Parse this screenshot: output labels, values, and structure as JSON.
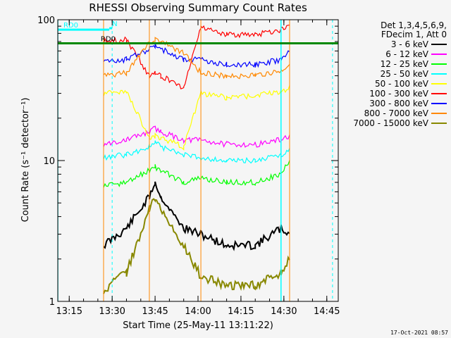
{
  "chart_data": {
    "type": "line",
    "title": "RHESSI Observing Summary Count Rates",
    "xlabel": "Start Time (25-May-11 13:11:22)",
    "ylabel": "Count Rate (s⁻¹ detector⁻¹)",
    "y_scale": "log",
    "ylim": [
      1,
      100
    ],
    "xlim": [
      "13:11",
      "14:49"
    ],
    "x_ticks": [
      "13:15",
      "13:30",
      "13:45",
      "14:00",
      "14:15",
      "14:30",
      "14:45"
    ],
    "y_ticks": [
      "1",
      "10",
      "100"
    ],
    "legend_position": "top-right",
    "legend_title": [
      "Det 1,3,4,5,6,9,",
      "FDecim 1, Att 0"
    ],
    "series": [
      {
        "name": "3 - 6 keV",
        "color": "#000000",
        "x": [
          "13:27",
          "13:35",
          "13:43",
          "13:45",
          "13:47",
          "13:55",
          "14:01",
          "14:10",
          "14:20",
          "14:29",
          "14:32"
        ],
        "y": [
          2.5,
          3.3,
          5.5,
          7.0,
          5.5,
          3.3,
          3.0,
          2.5,
          2.5,
          3.3,
          3.0
        ]
      },
      {
        "name": "6 - 12 keV",
        "color": "#ff00ff",
        "x": [
          "13:27",
          "13:35",
          "13:43",
          "13:45",
          "13:47",
          "13:55",
          "14:01",
          "14:10",
          "14:20",
          "14:29",
          "14:32"
        ],
        "y": [
          13.0,
          14.0,
          16.0,
          17.0,
          16.0,
          14.0,
          14.0,
          13.0,
          13.0,
          14.0,
          15.0
        ]
      },
      {
        "name": "12 - 25 keV",
        "color": "#00ff00",
        "x": [
          "13:27",
          "13:35",
          "13:43",
          "13:45",
          "13:47",
          "13:55",
          "14:01",
          "14:10",
          "14:20",
          "14:29",
          "14:32"
        ],
        "y": [
          6.5,
          7.0,
          8.5,
          9.0,
          8.5,
          7.0,
          7.5,
          7.0,
          7.0,
          8.0,
          10.0
        ]
      },
      {
        "name": "25 - 50 keV",
        "color": "#00ffff",
        "x": [
          "13:27",
          "13:35",
          "13:43",
          "13:45",
          "13:47",
          "13:55",
          "14:01",
          "14:10",
          "14:20",
          "14:29",
          "14:32"
        ],
        "y": [
          10.5,
          11.0,
          12.5,
          13.5,
          12.5,
          11.0,
          10.5,
          10.0,
          10.0,
          11.0,
          12.0
        ]
      },
      {
        "name": "50 - 100 keV",
        "color": "#ffff00",
        "x": [
          "13:27",
          "13:35",
          "13:43",
          "13:45",
          "13:47",
          "13:55",
          "14:01",
          "14:10",
          "14:20",
          "14:29",
          "14:32"
        ],
        "y": [
          30.0,
          31.0,
          14.5,
          15.0,
          14.5,
          12.5,
          30.0,
          28.0,
          29.0,
          31.0,
          33.0
        ]
      },
      {
        "name": "100 - 300 keV",
        "color": "#ff0000",
        "x": [
          "13:27",
          "13:35",
          "13:43",
          "13:45",
          "13:47",
          "13:55",
          "14:01",
          "14:10",
          "14:20",
          "14:29",
          "14:32"
        ],
        "y": [
          70.0,
          72.0,
          40.0,
          42.0,
          40.0,
          33.0,
          90.0,
          78.0,
          78.0,
          85.0,
          95.0
        ]
      },
      {
        "name": "300 - 800 keV",
        "color": "#0000ff",
        "x": [
          "13:27",
          "13:35",
          "13:43",
          "13:45",
          "13:47",
          "13:55",
          "14:01",
          "14:10",
          "14:20",
          "14:29",
          "14:32"
        ],
        "y": [
          50.0,
          52.0,
          62.0,
          66.0,
          62.0,
          52.0,
          52.0,
          48.0,
          48.0,
          52.0,
          60.0
        ]
      },
      {
        "name": "800 - 7000 keV",
        "color": "#ff8800",
        "x": [
          "13:27",
          "13:35",
          "13:43",
          "13:45",
          "13:47",
          "13:55",
          "14:01",
          "14:10",
          "14:20",
          "14:29",
          "14:32"
        ],
        "y": [
          40.0,
          42.0,
          70.0,
          72.0,
          70.0,
          58.0,
          42.0,
          40.0,
          40.0,
          43.0,
          48.0
        ]
      },
      {
        "name": "7000 - 15000 keV",
        "color": "#888800",
        "x": [
          "13:27",
          "13:35",
          "13:43",
          "13:45",
          "13:47",
          "13:55",
          "14:01",
          "14:10",
          "14:20",
          "14:29",
          "14:32"
        ],
        "y": [
          1.2,
          1.6,
          4.5,
          5.5,
          4.5,
          2.5,
          1.5,
          1.3,
          1.3,
          1.6,
          2.0
        ]
      }
    ],
    "annotations": [
      {
        "text": "RD0",
        "color": "#00ffff",
        "x_start": "13:11",
        "x_end": "13:29",
        "y": 85
      },
      {
        "text": "N",
        "color": "#00ffff",
        "x_start": "13:29",
        "x_end": "13:30",
        "y": 87
      },
      {
        "text": "RD0",
        "color": "#008800",
        "x_start": "13:11",
        "x_end": "14:49",
        "y": 68
      }
    ]
  },
  "footer_date": "17-Oct-2021 08:57"
}
